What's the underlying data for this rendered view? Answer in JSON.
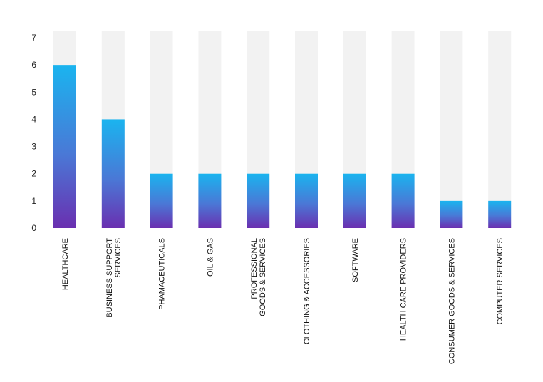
{
  "chart_data": {
    "type": "bar",
    "categories": [
      [
        "HEALTHCARE"
      ],
      [
        "BUSINESS SUPPORT",
        "SERVICES"
      ],
      [
        "PHAMACEUTICALS"
      ],
      [
        "OIL & GAS"
      ],
      [
        "PROFESSIONAL",
        "GOODS & SERVICES"
      ],
      [
        "CLOTHING & ACCESSORIES"
      ],
      [
        "SOFTWARE"
      ],
      [
        "HEALTH CARE PROVIDERS"
      ],
      [
        "CONSUMER GOODS & SERVICES"
      ],
      [
        "COMPUTER SERVICES"
      ]
    ],
    "values": [
      6,
      4,
      2,
      2,
      2,
      2,
      2,
      2,
      1,
      1
    ],
    "ylim": [
      0,
      7
    ],
    "yticks": [
      0,
      1,
      2,
      3,
      4,
      5,
      6,
      7
    ],
    "grid": false,
    "legend": "none",
    "colors": {
      "bar_top": "#1ab4ef",
      "bar_mid": "#4a78d6",
      "bar_bottom": "#6a2fb0",
      "track": "#f2f2f2"
    }
  }
}
